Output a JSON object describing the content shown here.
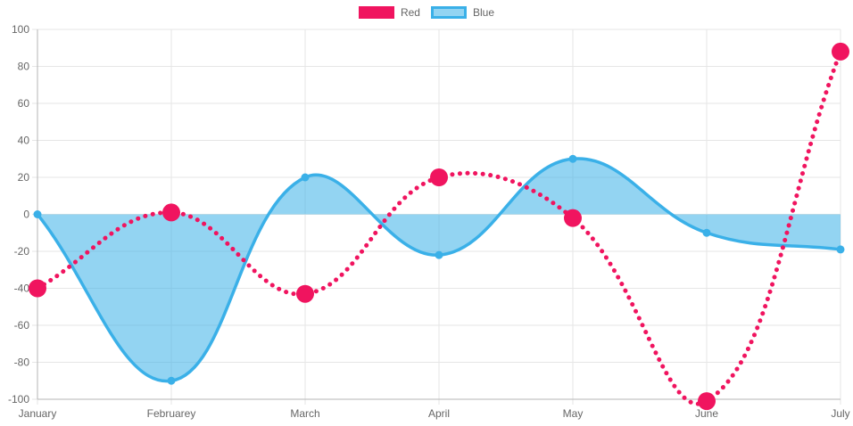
{
  "legend": {
    "items": [
      {
        "label": "Red"
      },
      {
        "label": "Blue"
      }
    ]
  },
  "chart_data": {
    "type": "line",
    "title": "",
    "xlabel": "",
    "ylabel": "",
    "categories": [
      "January",
      "Februarey",
      "March",
      "April",
      "May",
      "June",
      "July"
    ],
    "series": [
      {
        "name": "Red",
        "values": [
          -40,
          1,
          -43,
          20,
          -2,
          -101,
          88
        ],
        "color": "#f0145f",
        "line_style": "dotted",
        "fill": "none",
        "line_width": 5,
        "point_radius": 10
      },
      {
        "name": "Blue",
        "values": [
          0,
          -90,
          20,
          -22,
          30,
          -10,
          -19
        ],
        "color": "#3ab0e8",
        "fill_color": "rgba(58,176,232,0.55)",
        "line_style": "solid",
        "fill": "origin",
        "line_width": 3.5,
        "point_radius": 4.5
      }
    ],
    "ylim": [
      -100,
      100
    ],
    "y_tick_step": 20,
    "y_tick_labels": [
      "100",
      "80",
      "60",
      "40",
      "20",
      "0",
      "-20",
      "-40",
      "-60",
      "-80",
      "-100"
    ],
    "grid": true,
    "smoothing_tension": 0.4,
    "legend_position": "top-center",
    "colors": {
      "grid": "#e6e6e6",
      "axis": "#b6b6b6",
      "tick_text": "#666666",
      "background": "#ffffff"
    }
  }
}
